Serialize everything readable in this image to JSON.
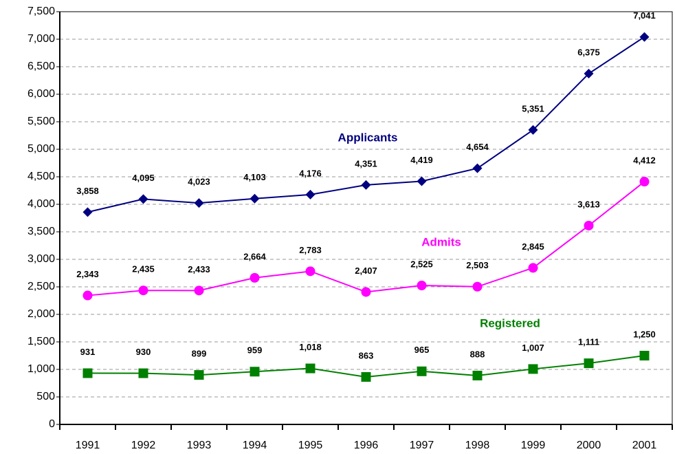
{
  "chart_data": {
    "type": "line",
    "categories": [
      "1991",
      "1992",
      "1993",
      "1994",
      "1995",
      "1996",
      "1997",
      "1998",
      "1999",
      "2000",
      "2001"
    ],
    "series": [
      {
        "name": "Applicants",
        "color": "#000080",
        "marker": "diamond",
        "values": [
          3858,
          4095,
          4023,
          4103,
          4176,
          4351,
          4419,
          4654,
          5351,
          6375,
          7041
        ],
        "value_labels": [
          "3,858",
          "4,095",
          "4,023",
          "4,103",
          "4,176",
          "4,351",
          "4,419",
          "4,654",
          "5,351",
          "6,375",
          "7,041"
        ]
      },
      {
        "name": "Admits",
        "color": "#ff00ff",
        "marker": "circle",
        "values": [
          2343,
          2435,
          2433,
          2664,
          2783,
          2407,
          2525,
          2503,
          2845,
          3613,
          4412
        ],
        "value_labels": [
          "2,343",
          "2,435",
          "2,433",
          "2,664",
          "2,783",
          "2,407",
          "2,525",
          "2,503",
          "2,845",
          "3,613",
          "4,412"
        ]
      },
      {
        "name": "Registered",
        "color": "#008000",
        "marker": "square",
        "values": [
          931,
          930,
          899,
          959,
          1018,
          863,
          965,
          888,
          1007,
          1111,
          1250
        ],
        "value_labels": [
          "931",
          "930",
          "899",
          "959",
          "1,018",
          "863",
          "965",
          "888",
          "1,007",
          "1,111",
          "1,250"
        ]
      }
    ],
    "ylim": [
      0,
      7500
    ],
    "yticks": [
      0,
      500,
      {
        "value": 1000,
        "label": "1,000"
      },
      {
        "value": 1500,
        "label": "1,500"
      },
      {
        "value": 2000,
        "label": "2,000"
      },
      {
        "value": 2500,
        "label": "2,500"
      },
      {
        "value": 3000,
        "label": "3,000"
      },
      {
        "value": 3500,
        "label": "3,500"
      },
      {
        "value": 4000,
        "label": "4,000"
      },
      {
        "value": 4500,
        "label": "4,500"
      },
      {
        "value": 5000,
        "label": "5,000"
      },
      {
        "value": 5500,
        "label": "5,500"
      },
      {
        "value": 6000,
        "label": "6,000"
      },
      {
        "value": 6500,
        "label": "6,500"
      },
      {
        "value": 7000,
        "label": "7,000"
      },
      {
        "value": 7500,
        "label": "7,500"
      }
    ],
    "grid": true
  }
}
